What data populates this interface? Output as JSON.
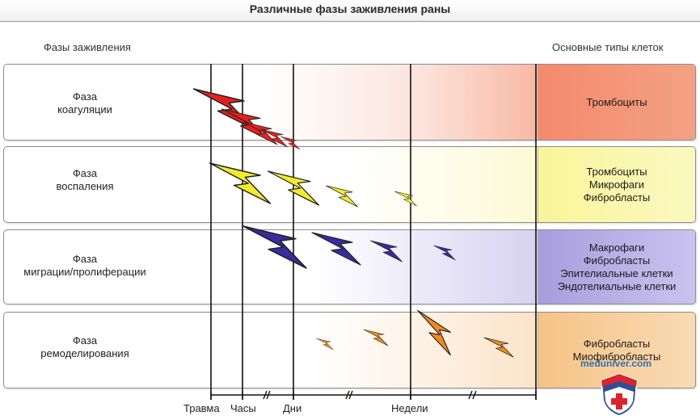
{
  "title": "Различные фазы заживления раны",
  "headers": {
    "left": "Фазы заживления",
    "right": "Основные типы клеток"
  },
  "phases": [
    {
      "line1": "Фаза",
      "line2": "коагуляции",
      "cells": [
        "Тромбоциты"
      ],
      "color": "#e8201c"
    },
    {
      "line1": "Фаза",
      "line2": "воспаления",
      "cells": [
        "Тромбоциты",
        "Микрофаги",
        "Фибробласты"
      ],
      "color": "#f3ec2e"
    },
    {
      "line1": "Фаза",
      "line2": "миграции/пролиферации",
      "cells": [
        "Макрофаги",
        "Фибробласты",
        "Эпителиальные клетки",
        "Эндотелиальные клетки"
      ],
      "color": "#3b2aa0"
    },
    {
      "line1": "Фаза",
      "line2": "ремоделирования",
      "cells": [
        "Фибробласты",
        "Миофибробласты"
      ],
      "color": "#f08a24"
    }
  ],
  "timeline": [
    "Травма",
    "Часы",
    "Дни",
    "Недели"
  ],
  "watermark": "meduniver.com"
}
